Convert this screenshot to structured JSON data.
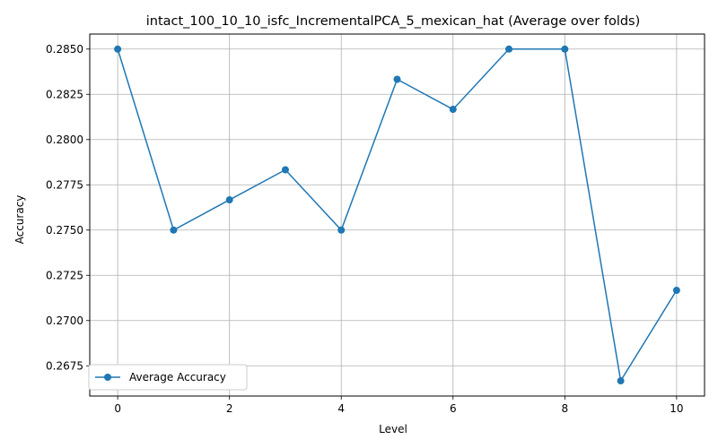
{
  "chart_data": {
    "type": "line",
    "title": "intact_100_10_10_isfc_IncrementalPCA_5_mexican_hat (Average over folds)",
    "xlabel": "Level",
    "ylabel": "Accuracy",
    "x": [
      0,
      1,
      2,
      3,
      4,
      5,
      6,
      7,
      8,
      9,
      10
    ],
    "series": [
      {
        "name": "Average Accuracy",
        "color": "#1f77b4",
        "marker": "circle",
        "values": [
          0.285,
          0.275,
          0.27667,
          0.27833,
          0.275,
          0.28333,
          0.28167,
          0.285,
          0.285,
          0.26667,
          0.27167
        ]
      }
    ],
    "xlim": [
      -0.5,
      10.5
    ],
    "ylim": [
      0.26583,
      0.28583
    ],
    "xticks": [
      0,
      2,
      4,
      6,
      8,
      10
    ],
    "xtick_labels": [
      "0",
      "2",
      "4",
      "6",
      "8",
      "10"
    ],
    "yticks": [
      0.2675,
      0.27,
      0.2725,
      0.275,
      0.2775,
      0.28,
      0.2825,
      0.285
    ],
    "ytick_labels": [
      "0.2675",
      "0.2700",
      "0.2725",
      "0.2750",
      "0.2775",
      "0.2800",
      "0.2825",
      "0.2850"
    ],
    "grid": true,
    "legend_position": "lower-left"
  }
}
